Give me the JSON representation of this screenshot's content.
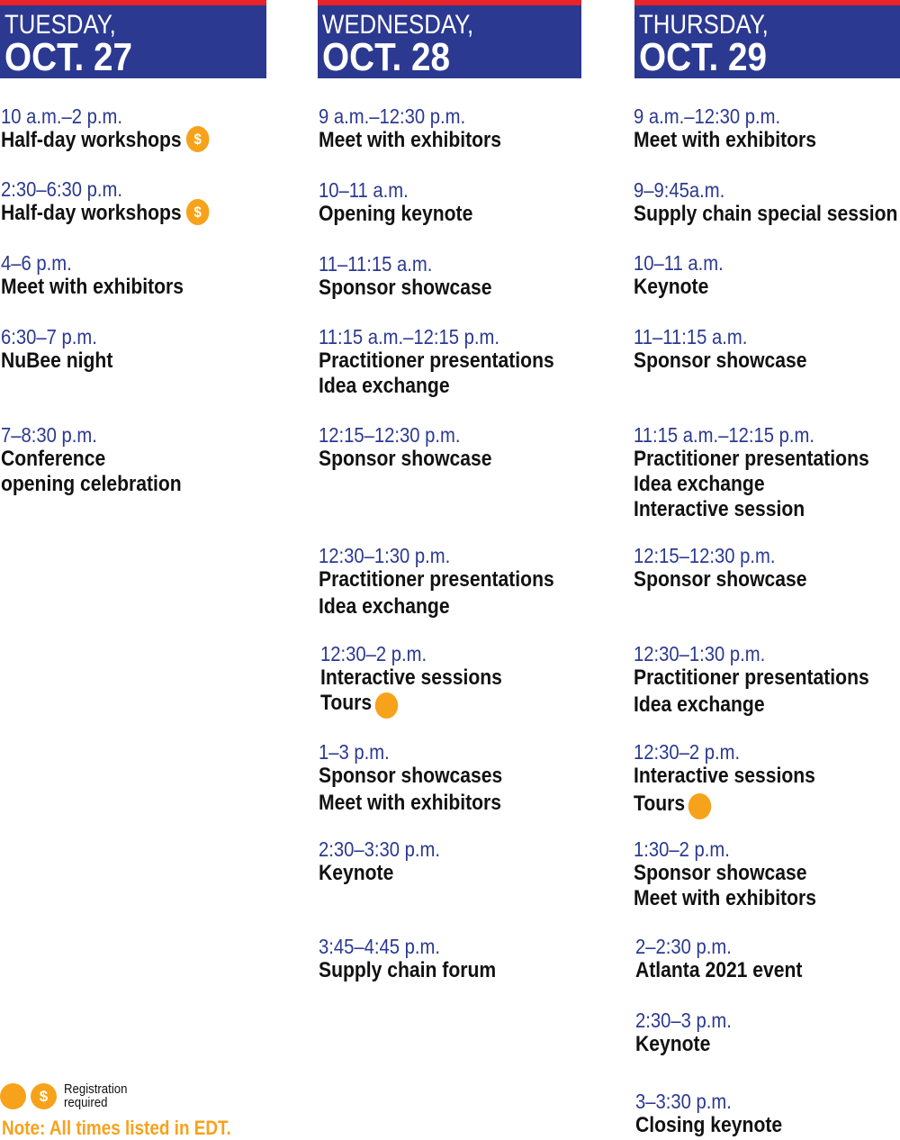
{
  "days": [
    {
      "day": "TUESDAY,",
      "date": "OCT. 27",
      "events": [
        {
          "time": "10 a.m.–2 p.m.",
          "items": [
            "Half-day workshops"
          ],
          "fee": true
        },
        {
          "time": "2:30–6:30 p.m.",
          "items": [
            "Half-day workshops"
          ],
          "fee": true
        },
        {
          "time": "4–6 p.m.",
          "items": [
            "Meet with exhibitors"
          ]
        },
        {
          "time": "6:30–7 p.m.",
          "items": [
            "NuBee night"
          ]
        },
        {
          "time": "7–8:30 p.m.",
          "items": [
            "Conference",
            "opening celebration"
          ]
        }
      ]
    },
    {
      "day": "WEDNESDAY,",
      "date": "OCT. 28",
      "events": [
        {
          "time": "9 a.m.–12:30 p.m.",
          "items": [
            "Meet with exhibitors"
          ]
        },
        {
          "time": "10–11 a.m.",
          "items": [
            "Opening keynote"
          ]
        },
        {
          "time": "11–11:15 a.m.",
          "items": [
            "Sponsor showcase"
          ]
        },
        {
          "time": "11:15 a.m.–12:15 p.m.",
          "items": [
            "Practitioner presentations",
            "Idea exchange"
          ]
        },
        {
          "time": "12:15–12:30 p.m.",
          "items": [
            "Sponsor showcase"
          ]
        },
        {
          "time": "12:30–1:30 p.m.",
          "items": [
            "Practitioner presentations",
            "Idea exchange"
          ]
        },
        {
          "time": "12:30–2 p.m.",
          "items": [
            "Interactive sessions",
            "Tours"
          ],
          "tour": true
        },
        {
          "time": "1–3 p.m.",
          "items": [
            "Sponsor showcases",
            "Meet with exhibitors"
          ]
        },
        {
          "time": "2:30–3:30 p.m.",
          "items": [
            "Keynote"
          ]
        },
        {
          "time": "3:45–4:45 p.m.",
          "items": [
            "Supply chain forum"
          ]
        }
      ]
    },
    {
      "day": "THURSDAY,",
      "date": "OCT. 29",
      "events": [
        {
          "time": "9 a.m.–12:30 p.m.",
          "items": [
            "Meet with exhibitors"
          ]
        },
        {
          "time": "9–9:45a.m.",
          "items": [
            "Supply chain special session"
          ]
        },
        {
          "time": "10–11 a.m.",
          "items": [
            "Keynote"
          ]
        },
        {
          "time": "11–11:15 a.m.",
          "items": [
            "Sponsor showcase"
          ]
        },
        {
          "time": "11:15 a.m.–12:15 p.m.",
          "items": [
            "Practitioner presentations",
            "Idea exchange",
            "Interactive session"
          ]
        },
        {
          "time": "12:15–12:30 p.m.",
          "items": [
            "Sponsor showcase"
          ]
        },
        {
          "time": "12:30–1:30 p.m.",
          "items": [
            "Practitioner presentations",
            "Idea exchange"
          ]
        },
        {
          "time": "12:30–2 p.m.",
          "items": [
            "Interactive sessions",
            "Tours"
          ],
          "tour": true
        },
        {
          "time": "1:30–2 p.m.",
          "items": [
            "Sponsor showcase",
            "Meet with exhibitors"
          ]
        },
        {
          "time": "2–2:30 p.m.",
          "items": [
            "Atlanta 2021 event"
          ]
        },
        {
          "time": "2:30–3 p.m.",
          "items": [
            "Keynote"
          ]
        },
        {
          "time": "3–3:30 p.m.",
          "items": [
            "Closing keynote"
          ]
        }
      ]
    }
  ],
  "fee_symbol": "$",
  "legend": {
    "label": "Registration required"
  },
  "note": "Note: All times listed in EDT.",
  "colors": {
    "header_bg": "#2b3990",
    "header_stripe": "#e8232a",
    "time": "#2b3990",
    "accent": "#f7a21b"
  }
}
